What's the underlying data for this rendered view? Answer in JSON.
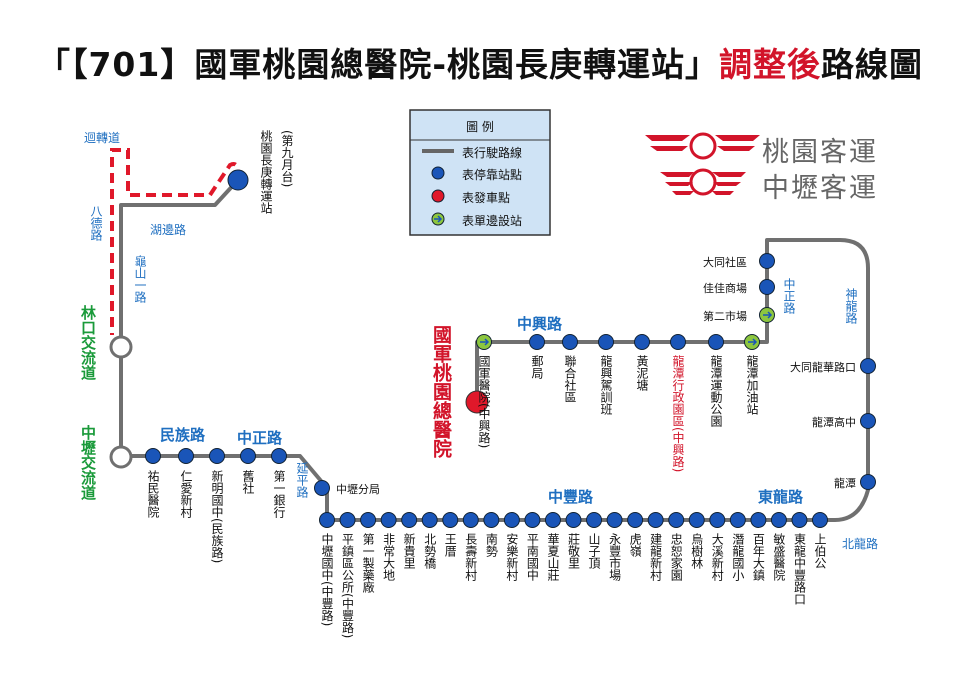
{
  "title": {
    "main": "「【701】國軍桃園總醫院-桃園長庚轉運站」",
    "highlight": "調整後",
    "suffix": "路線圖"
  },
  "legend": {
    "title": "圖 例",
    "items": [
      "表行駛路線",
      "表停靠站點",
      "表發車點",
      "表單邊設站"
    ]
  },
  "logos": [
    "桃園客運",
    "中壢客運"
  ],
  "roads": [
    "迴轉道",
    "八德路",
    "湖邊路",
    "龜山一路",
    "林口交流道",
    "中壢交流道",
    "民族路",
    "中正路",
    "延平路",
    "中興路",
    "中正路",
    "神龍路",
    "中豐路",
    "東龍路",
    "北龍路"
  ],
  "terminals": {
    "start": "國軍桃園總醫院",
    "end": "桃園長庚轉運站",
    "end_note": "(第九月台)"
  },
  "stops": {
    "top_row": [
      "國軍醫院(中興路)",
      "郵局",
      "聯合社區",
      "龍興駕訓班",
      "黃泥塘",
      "龍潭行政園區(中興路)",
      "龍潭運動公園",
      "龍潭加油站"
    ],
    "right_upper": [
      "第二市場",
      "佳佳商場",
      "大同社區"
    ],
    "right_lower": [
      "大同龍華路口",
      "龍潭高中",
      "龍潭"
    ],
    "bottom_row": [
      "中壢國中(中豐路)",
      "平鎮區公所(中豐路)",
      "第一製藥廠",
      "非常大地",
      "新貴里",
      "北勢橋",
      "王厝",
      "長壽新村",
      "南勢",
      "安樂新村",
      "平南國中",
      "華夏山莊",
      "莊敬里",
      "山子頂",
      "永豐市場",
      "虎嶺",
      "建龍新村",
      "忠恕家園",
      "烏樹林",
      "大溪新村",
      "潛龍國小",
      "百年大鎮",
      "敏盛醫院",
      "東龍中豐路口",
      "上伯公"
    ],
    "branch": "中壢分局",
    "left_row": [
      "祐民醫院",
      "仁愛新村",
      "新明國中(民族路)",
      "舊社",
      "第一銀行"
    ]
  }
}
